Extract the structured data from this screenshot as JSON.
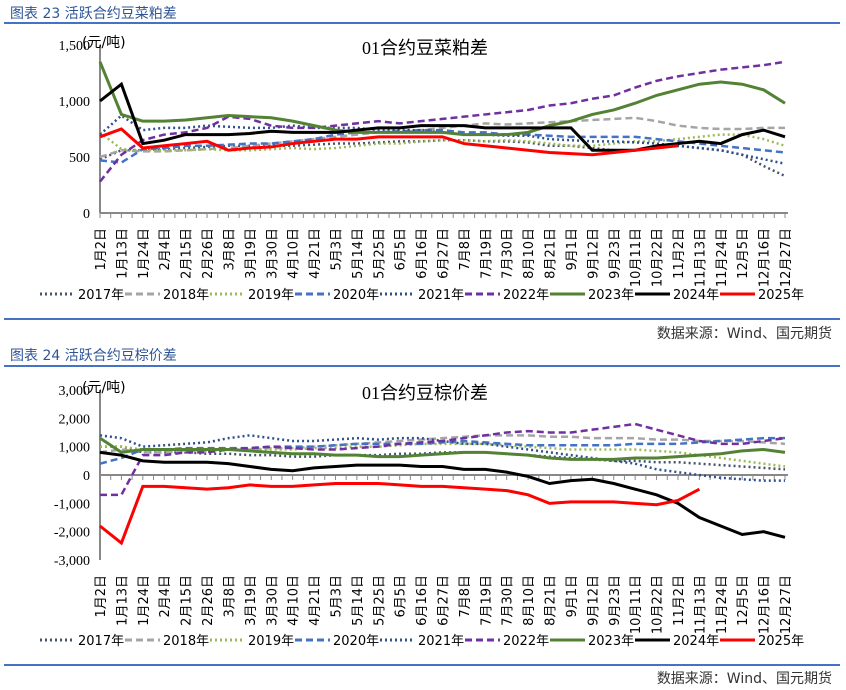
{
  "figures": [
    {
      "caption": "图表 23 活跃合约豆菜粕差",
      "source": "数据来源：Wind、国元期货"
    },
    {
      "caption": "图表 24 活跃合约豆棕价差",
      "source": "数据来源：Wind、国元期货"
    }
  ],
  "chart_data": [
    {
      "type": "line",
      "title": "01合约豆菜粕差",
      "ylabel": "(元/吨)",
      "ylim": [
        0,
        1500
      ],
      "yticks": [
        "0",
        "500",
        "1,000",
        "1,500"
      ],
      "ytick_values": [
        0,
        500,
        1000,
        1500
      ],
      "grid": false,
      "legend": "bottom",
      "categories": [
        "1月2日",
        "1月13日",
        "1月24日",
        "2月4日",
        "2月15日",
        "2月26日",
        "3月8日",
        "3月19日",
        "3月30日",
        "4月10日",
        "4月21日",
        "5月3日",
        "5月14日",
        "5月25日",
        "6月5日",
        "6月16日",
        "6月27日",
        "7月8日",
        "7月19日",
        "7月30日",
        "8月10日",
        "8月21日",
        "9月1日",
        "9月12日",
        "9月23日",
        "10月11日",
        "10月22日",
        "11月2日",
        "11月13日",
        "11月24日",
        "12月5日",
        "12月16日",
        "12月27日"
      ],
      "series": [
        {
          "name": "2017年",
          "color": "#44546a",
          "style": "dotted",
          "values": [
            480,
            560,
            560,
            570,
            580,
            590,
            600,
            600,
            600,
            600,
            610,
            620,
            620,
            630,
            640,
            640,
            650,
            650,
            640,
            640,
            630,
            600,
            600,
            580,
            560,
            560,
            580,
            600,
            580,
            560,
            520,
            420,
            330
          ]
        },
        {
          "name": "2018年",
          "color": "#a5a5a5",
          "style": "dashed",
          "values": [
            500,
            560,
            550,
            550,
            560,
            570,
            580,
            600,
            620,
            640,
            660,
            680,
            700,
            720,
            720,
            740,
            760,
            780,
            800,
            790,
            800,
            810,
            820,
            830,
            840,
            850,
            820,
            780,
            760,
            750,
            750,
            760,
            760
          ]
        },
        {
          "name": "2019年",
          "color": "#9bbb59",
          "style": "dotted",
          "values": [
            720,
            570,
            560,
            560,
            560,
            570,
            560,
            560,
            570,
            580,
            570,
            580,
            600,
            620,
            620,
            640,
            650,
            650,
            640,
            650,
            640,
            620,
            600,
            600,
            620,
            640,
            640,
            660,
            680,
            700,
            700,
            660,
            600
          ]
        },
        {
          "name": "2020年",
          "color": "#4472c4",
          "style": "dashed",
          "values": [
            470,
            450,
            570,
            580,
            600,
            600,
            610,
            620,
            620,
            640,
            660,
            700,
            720,
            720,
            730,
            740,
            740,
            720,
            720,
            700,
            700,
            690,
            680,
            680,
            680,
            680,
            660,
            640,
            620,
            600,
            580,
            560,
            540
          ]
        },
        {
          "name": "2021年",
          "color": "#2f4f8f",
          "style": "dotted",
          "values": [
            700,
            870,
            740,
            760,
            760,
            780,
            770,
            760,
            760,
            780,
            760,
            760,
            760,
            740,
            740,
            740,
            720,
            700,
            700,
            690,
            690,
            660,
            650,
            640,
            640,
            630,
            620,
            600,
            580,
            560,
            520,
            480,
            440
          ]
        },
        {
          "name": "2022年",
          "color": "#7030a0",
          "style": "dashed",
          "values": [
            280,
            520,
            650,
            700,
            720,
            760,
            860,
            840,
            780,
            760,
            760,
            780,
            800,
            820,
            800,
            820,
            840,
            860,
            880,
            900,
            920,
            960,
            980,
            1020,
            1050,
            1120,
            1180,
            1220,
            1250,
            1280,
            1300,
            1320,
            1350
          ]
        },
        {
          "name": "2023年",
          "color": "#548235",
          "style": "solid",
          "values": [
            1350,
            880,
            820,
            820,
            830,
            850,
            870,
            860,
            850,
            820,
            780,
            740,
            720,
            720,
            720,
            720,
            720,
            700,
            700,
            700,
            720,
            780,
            820,
            880,
            920,
            980,
            1050,
            1100,
            1150,
            1170,
            1150,
            1100,
            980
          ]
        },
        {
          "name": "2024年",
          "color": "#000000",
          "style": "solid",
          "values": [
            1000,
            1150,
            620,
            650,
            700,
            700,
            700,
            710,
            730,
            720,
            720,
            720,
            740,
            760,
            760,
            780,
            780,
            780,
            760,
            760,
            760,
            760,
            760,
            560,
            560,
            560,
            600,
            620,
            640,
            620,
            700,
            740,
            680
          ]
        },
        {
          "name": "2025年",
          "color": "#ff0000",
          "style": "solid",
          "values": [
            680,
            750,
            580,
            600,
            620,
            640,
            560,
            580,
            590,
            620,
            640,
            660,
            660,
            680,
            680,
            680,
            680,
            620,
            600,
            580,
            560,
            540,
            530,
            520,
            540,
            560,
            580,
            600,
            null,
            null,
            null,
            null,
            null
          ]
        }
      ]
    },
    {
      "type": "line",
      "title": "01合约豆棕价差",
      "ylabel": "(元/吨)",
      "ylim": [
        -3000,
        3000
      ],
      "yticks": [
        "-3,000",
        "-2,000",
        "-1,000",
        "0",
        "1,000",
        "2,000",
        "3,000"
      ],
      "ytick_values": [
        -3000,
        -2000,
        -1000,
        0,
        1000,
        2000,
        3000
      ],
      "grid": false,
      "legend": "bottom",
      "categories": [
        "1月2日",
        "1月13日",
        "1月24日",
        "2月4日",
        "2月15日",
        "2月26日",
        "3月8日",
        "3月19日",
        "3月30日",
        "4月10日",
        "4月21日",
        "5月3日",
        "5月14日",
        "5月25日",
        "6月5日",
        "6月16日",
        "6月27日",
        "7月8日",
        "7月19日",
        "7月30日",
        "8月10日",
        "8月21日",
        "9月1日",
        "9月12日",
        "9月23日",
        "10月11日",
        "10月22日",
        "11月2日",
        "11月13日",
        "11月24日",
        "12月5日",
        "12月16日",
        "12月27日"
      ],
      "series": [
        {
          "name": "2017年",
          "color": "#44546a",
          "style": "dotted",
          "values": [
            1000,
            1000,
            800,
            800,
            800,
            750,
            750,
            700,
            700,
            650,
            650,
            700,
            700,
            700,
            750,
            750,
            800,
            800,
            800,
            750,
            700,
            650,
            600,
            550,
            500,
            500,
            450,
            450,
            400,
            350,
            300,
            250,
            200
          ]
        },
        {
          "name": "2018年",
          "color": "#a5a5a5",
          "style": "dashed",
          "values": [
            800,
            900,
            800,
            800,
            850,
            850,
            900,
            900,
            950,
            950,
            1000,
            1050,
            1100,
            1150,
            1200,
            1250,
            1300,
            1350,
            1400,
            1400,
            1400,
            1350,
            1350,
            1300,
            1300,
            1300,
            1250,
            1250,
            1200,
            1200,
            1200,
            1150,
            1100
          ]
        },
        {
          "name": "2019年",
          "color": "#9bbb59",
          "style": "dotted",
          "values": [
            1000,
            1000,
            900,
            900,
            850,
            850,
            900,
            900,
            900,
            900,
            950,
            950,
            1000,
            1000,
            1050,
            1100,
            1100,
            1100,
            1100,
            1050,
            1000,
            950,
            900,
            900,
            900,
            900,
            850,
            800,
            700,
            600,
            500,
            400,
            300
          ]
        },
        {
          "name": "2020年",
          "color": "#4472c4",
          "style": "dashed",
          "values": [
            400,
            600,
            900,
            900,
            950,
            950,
            950,
            950,
            1000,
            1000,
            1000,
            1050,
            1100,
            1100,
            1100,
            1100,
            1150,
            1200,
            1150,
            1100,
            1050,
            1050,
            1050,
            1050,
            1050,
            1100,
            1100,
            1100,
            1150,
            1200,
            1250,
            1300,
            1300
          ]
        },
        {
          "name": "2021年",
          "color": "#2f4f8f",
          "style": "dotted",
          "values": [
            1400,
            1300,
            1000,
            1050,
            1100,
            1150,
            1300,
            1400,
            1300,
            1200,
            1200,
            1250,
            1300,
            1250,
            1300,
            1300,
            1200,
            1100,
            1100,
            1000,
            900,
            800,
            700,
            600,
            500,
            400,
            200,
            100,
            0,
            -100,
            -150,
            -200,
            -200
          ]
        },
        {
          "name": "2022年",
          "color": "#7030a0",
          "style": "dashed",
          "values": [
            -700,
            -700,
            700,
            700,
            800,
            800,
            900,
            950,
            1000,
            950,
            900,
            900,
            950,
            1000,
            1100,
            1150,
            1200,
            1300,
            1400,
            1500,
            1550,
            1500,
            1500,
            1600,
            1700,
            1800,
            1600,
            1400,
            1200,
            1100,
            1100,
            1200,
            1300
          ]
        },
        {
          "name": "2023年",
          "color": "#548235",
          "style": "solid",
          "values": [
            1300,
            800,
            900,
            900,
            900,
            900,
            900,
            850,
            800,
            750,
            750,
            700,
            700,
            650,
            650,
            700,
            750,
            800,
            800,
            750,
            700,
            600,
            550,
            550,
            550,
            600,
            600,
            650,
            700,
            750,
            850,
            900,
            800
          ]
        },
        {
          "name": "2024年",
          "color": "#000000",
          "style": "solid",
          "values": [
            800,
            700,
            500,
            450,
            450,
            450,
            400,
            300,
            200,
            150,
            250,
            300,
            350,
            350,
            350,
            300,
            300,
            200,
            200,
            100,
            -50,
            -300,
            -200,
            -150,
            -300,
            -500,
            -700,
            -1000,
            -1500,
            -1800,
            -2100,
            -2000,
            -2200
          ]
        },
        {
          "name": "2025年",
          "color": "#ff0000",
          "style": "solid",
          "values": [
            -1800,
            -2400,
            -400,
            -400,
            -450,
            -500,
            -450,
            -350,
            -400,
            -400,
            -350,
            -300,
            -300,
            -300,
            -350,
            -400,
            -400,
            -450,
            -500,
            -550,
            -700,
            -1000,
            -950,
            -950,
            -950,
            -1000,
            -1050,
            -900,
            -500,
            null,
            null,
            null,
            null
          ]
        }
      ]
    }
  ]
}
